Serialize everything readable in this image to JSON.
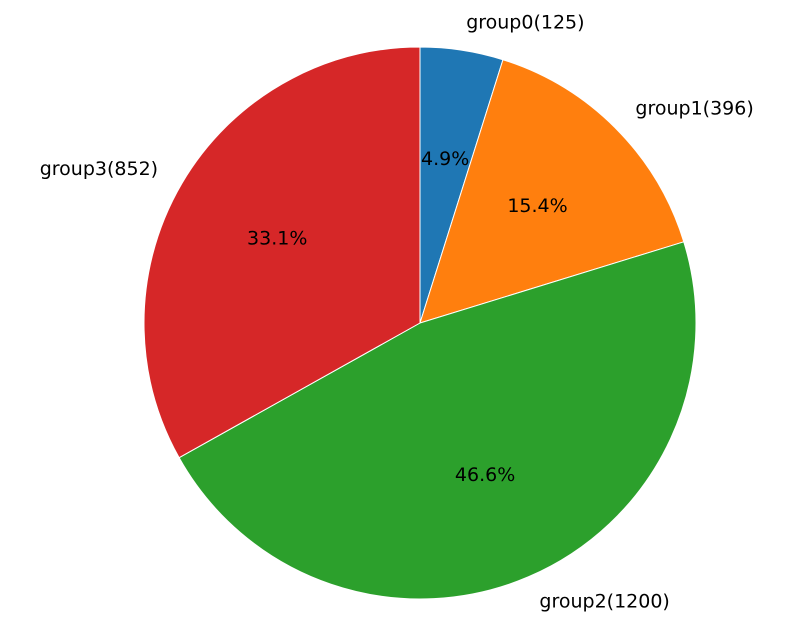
{
  "chart_data": {
    "type": "pie",
    "categories": [
      "group0",
      "group1",
      "group2",
      "group3"
    ],
    "values": [
      125,
      396,
      1200,
      852
    ],
    "labels": [
      "group0(125)",
      "group1(396)",
      "group2(1200)",
      "group3(852)"
    ],
    "percent_labels": [
      "4.9%",
      "15.4%",
      "46.6%",
      "33.1%"
    ],
    "colors": [
      "#1f77b4",
      "#ff7f0e",
      "#2ca02c",
      "#d62728"
    ],
    "start_angle_deg": 90,
    "direction": "clockwise"
  }
}
